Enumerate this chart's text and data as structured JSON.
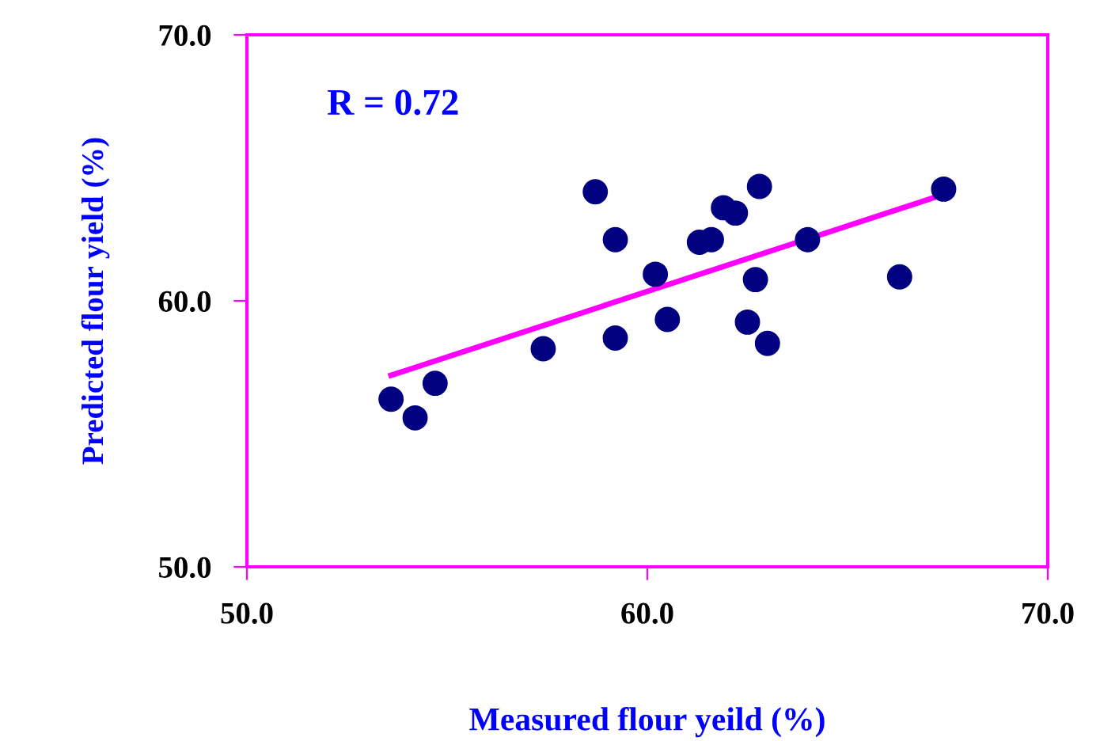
{
  "chart_data": {
    "type": "scatter",
    "xlabel": "Measured flour yeild (%)",
    "ylabel": "Predicted flour yield (%)",
    "xlim": [
      50,
      70
    ],
    "ylim": [
      50,
      70
    ],
    "xticks": [
      {
        "value": 50,
        "label": "50.0"
      },
      {
        "value": 60,
        "label": "60.0"
      },
      {
        "value": 70,
        "label": "70.0"
      }
    ],
    "yticks": [
      {
        "value": 50,
        "label": "50.0"
      },
      {
        "value": 60,
        "label": "60.0"
      },
      {
        "value": 70,
        "label": "70.0"
      }
    ],
    "grid": false,
    "legend": false,
    "annotations": [
      "R = 0.72"
    ],
    "series": [
      {
        "marker": "circle",
        "color": "#000080",
        "x": [
          53.6,
          54.2,
          54.7,
          57.4,
          58.7,
          59.2,
          59.2,
          60.2,
          60.5,
          61.3,
          61.6,
          61.9,
          62.2,
          62.8,
          62.7,
          62.5,
          63.0,
          64.0,
          66.3,
          67.4
        ],
        "values": [
          56.3,
          55.6,
          56.9,
          58.2,
          64.1,
          62.3,
          58.6,
          61.0,
          59.3,
          62.2,
          62.3,
          63.5,
          63.3,
          64.3,
          60.8,
          59.2,
          58.4,
          62.3,
          60.9,
          64.2
        ]
      },
      {
        "type": "line",
        "marker": "none",
        "color": "#ff00ff",
        "x": [
          53.6,
          67.4
        ],
        "values": [
          57.2,
          64.0
        ]
      }
    ]
  }
}
